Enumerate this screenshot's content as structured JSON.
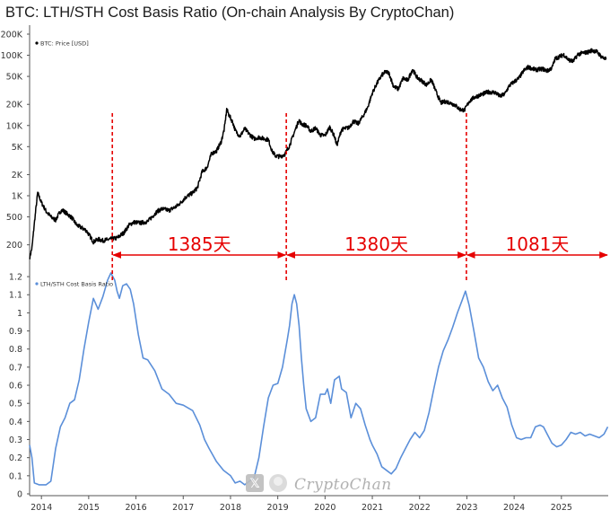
{
  "chart_data": [
    {
      "type": "line",
      "title": "BTC: LTH/STH Cost Basis Ratio (On-chain Analysis By CryptoChan)",
      "legend": "BTC: Price [USD]",
      "legend_position": "top-left",
      "yscale": "log",
      "ylim": [
        120,
        200000
      ],
      "y_ticks": [
        200,
        500,
        1000,
        2000,
        5000,
        10000,
        20000,
        50000,
        100000,
        200000
      ],
      "y_tick_labels": [
        "200",
        "500",
        "1K",
        "2K",
        "5K",
        "10K",
        "20K",
        "50K",
        "100K",
        "200K"
      ],
      "xlim": [
        2013.75,
        2025.99
      ],
      "series": [
        {
          "name": "BTC: Price [USD]",
          "color": "#000000",
          "x": [
            2013.75,
            2013.8,
            2013.85,
            2013.92,
            2014.0,
            2014.1,
            2014.2,
            2014.3,
            2014.4,
            2014.45,
            2014.55,
            2014.65,
            2014.75,
            2014.85,
            2014.95,
            2015.05,
            2015.1,
            2015.2,
            2015.3,
            2015.45,
            2015.6,
            2015.75,
            2015.85,
            2015.95,
            2016.1,
            2016.25,
            2016.45,
            2016.55,
            2016.7,
            2016.85,
            2016.95,
            2017.05,
            2017.2,
            2017.3,
            2017.4,
            2017.5,
            2017.6,
            2017.7,
            2017.8,
            2017.87,
            2017.92,
            2017.97,
            2018.05,
            2018.1,
            2018.2,
            2018.3,
            2018.4,
            2018.5,
            2018.6,
            2018.7,
            2018.8,
            2018.88,
            2018.95,
            2019.05,
            2019.15,
            2019.25,
            2019.35,
            2019.45,
            2019.5,
            2019.6,
            2019.7,
            2019.8,
            2019.9,
            2020.0,
            2020.1,
            2020.2,
            2020.25,
            2020.35,
            2020.5,
            2020.6,
            2020.7,
            2020.8,
            2020.9,
            2021.0,
            2021.1,
            2021.2,
            2021.28,
            2021.35,
            2021.45,
            2021.55,
            2021.65,
            2021.75,
            2021.85,
            2021.95,
            2022.05,
            2022.15,
            2022.25,
            2022.35,
            2022.45,
            2022.55,
            2022.65,
            2022.75,
            2022.85,
            2022.95,
            2023.05,
            2023.15,
            2023.3,
            2023.45,
            2023.6,
            2023.7,
            2023.8,
            2023.9,
            2024.0,
            2024.1,
            2024.2,
            2024.3,
            2024.45,
            2024.6,
            2024.7,
            2024.8,
            2024.87,
            2024.95,
            2025.05,
            2025.15,
            2025.25,
            2025.35,
            2025.45,
            2025.55,
            2025.65,
            2025.75,
            2025.85,
            2025.95
          ],
          "y": [
            130,
            180,
            400,
            1100,
            800,
            600,
            500,
            450,
            600,
            620,
            550,
            480,
            380,
            350,
            320,
            250,
            220,
            240,
            230,
            240,
            250,
            300,
            380,
            420,
            410,
            430,
            600,
            650,
            620,
            700,
            800,
            950,
            1100,
            1300,
            2200,
            2500,
            4000,
            4300,
            5800,
            9000,
            17000,
            14000,
            11000,
            8500,
            7000,
            9000,
            7500,
            6500,
            6800,
            6500,
            6300,
            4300,
            3700,
            3600,
            3900,
            5200,
            8000,
            12000,
            10500,
            10000,
            8300,
            9200,
            7300,
            7200,
            9500,
            7000,
            5200,
            8800,
            9300,
            11500,
            10600,
            13500,
            18000,
            29000,
            40000,
            52000,
            58000,
            56000,
            36000,
            33000,
            47000,
            44000,
            63000,
            48000,
            43000,
            38000,
            45000,
            30000,
            21000,
            22000,
            21000,
            19500,
            17000,
            16500,
            22000,
            25000,
            27500,
            30000,
            29500,
            26000,
            28000,
            37000,
            42000,
            47000,
            60000,
            68000,
            62000,
            64000,
            60000,
            66000,
            90000,
            95000,
            102000,
            86000,
            82000,
            103000,
            108000,
            110000,
            118000,
            112000,
            95000,
            87000
          ]
        }
      ]
    },
    {
      "type": "line",
      "legend": "LTH/STH Cost Basis Ratio",
      "legend_position": "top-left",
      "ylim": [
        0,
        1.25
      ],
      "y_ticks": [
        0,
        0.1,
        0.2,
        0.3,
        0.4,
        0.5,
        0.6,
        0.7,
        0.8,
        0.9,
        1.0,
        1.1,
        1.2
      ],
      "y_tick_labels": [
        "0",
        "0.1",
        "0.2",
        "0.3",
        "0.4",
        "0.5",
        "0.6",
        "0.7",
        "0.8",
        "0.9",
        "1",
        "1.1",
        "1.2"
      ],
      "xlim": [
        2013.75,
        2025.99
      ],
      "x_ticks": [
        2014,
        2015,
        2016,
        2017,
        2018,
        2019,
        2020,
        2021,
        2022,
        2023,
        2024,
        2025
      ],
      "x_tick_labels": [
        "2014",
        "2015",
        "2016",
        "2017",
        "2018",
        "2019",
        "2020",
        "2021",
        "2022",
        "2023",
        "2024",
        "2025"
      ],
      "series": [
        {
          "name": "LTH/STH Cost Basis Ratio",
          "color": "#5b8fd9",
          "x": [
            2013.75,
            2013.8,
            2013.85,
            2013.95,
            2014.1,
            2014.2,
            2014.3,
            2014.4,
            2014.5,
            2014.6,
            2014.7,
            2014.8,
            2014.9,
            2015.0,
            2015.1,
            2015.2,
            2015.3,
            2015.4,
            2015.47,
            2015.55,
            2015.6,
            2015.65,
            2015.72,
            2015.8,
            2015.88,
            2015.95,
            2016.05,
            2016.15,
            2016.25,
            2016.4,
            2016.55,
            2016.7,
            2016.85,
            2017.0,
            2017.2,
            2017.35,
            2017.45,
            2017.55,
            2017.7,
            2017.85,
            2018.0,
            2018.1,
            2018.2,
            2018.3,
            2018.4,
            2018.5,
            2018.6,
            2018.7,
            2018.8,
            2018.9,
            2019.0,
            2019.1,
            2019.2,
            2019.25,
            2019.3,
            2019.35,
            2019.4,
            2019.45,
            2019.5,
            2019.55,
            2019.6,
            2019.7,
            2019.8,
            2019.9,
            2020.0,
            2020.05,
            2020.12,
            2020.2,
            2020.3,
            2020.35,
            2020.45,
            2020.55,
            2020.65,
            2020.75,
            2020.85,
            2020.95,
            2021.0,
            2021.1,
            2021.2,
            2021.3,
            2021.4,
            2021.5,
            2021.6,
            2021.7,
            2021.8,
            2021.9,
            2022.0,
            2022.1,
            2022.2,
            2022.3,
            2022.4,
            2022.5,
            2022.6,
            2022.7,
            2022.8,
            2022.9,
            2022.97,
            2023.05,
            2023.15,
            2023.25,
            2023.35,
            2023.45,
            2023.55,
            2023.65,
            2023.75,
            2023.85,
            2023.95,
            2024.05,
            2024.15,
            2024.25,
            2024.35,
            2024.45,
            2024.55,
            2024.62,
            2024.7,
            2024.8,
            2024.9,
            2025.0,
            2025.1,
            2025.2,
            2025.3,
            2025.4,
            2025.5,
            2025.6,
            2025.7,
            2025.8,
            2025.9,
            2025.98
          ],
          "y": [
            0.27,
            0.2,
            0.06,
            0.05,
            0.05,
            0.07,
            0.25,
            0.37,
            0.42,
            0.5,
            0.52,
            0.63,
            0.8,
            0.95,
            1.08,
            1.02,
            1.09,
            1.18,
            1.22,
            1.18,
            1.12,
            1.08,
            1.15,
            1.16,
            1.13,
            1.05,
            0.88,
            0.75,
            0.74,
            0.68,
            0.58,
            0.55,
            0.5,
            0.49,
            0.46,
            0.38,
            0.3,
            0.25,
            0.18,
            0.13,
            0.1,
            0.06,
            0.07,
            0.05,
            0.07,
            0.09,
            0.2,
            0.37,
            0.53,
            0.6,
            0.61,
            0.7,
            0.85,
            0.93,
            1.05,
            1.1,
            1.05,
            0.93,
            0.75,
            0.6,
            0.47,
            0.4,
            0.42,
            0.55,
            0.55,
            0.58,
            0.5,
            0.63,
            0.65,
            0.58,
            0.56,
            0.42,
            0.5,
            0.47,
            0.38,
            0.3,
            0.27,
            0.22,
            0.15,
            0.13,
            0.11,
            0.14,
            0.2,
            0.25,
            0.3,
            0.34,
            0.31,
            0.35,
            0.45,
            0.58,
            0.7,
            0.79,
            0.85,
            0.92,
            1.0,
            1.07,
            1.12,
            1.04,
            0.9,
            0.75,
            0.7,
            0.62,
            0.57,
            0.6,
            0.53,
            0.48,
            0.38,
            0.31,
            0.3,
            0.31,
            0.31,
            0.37,
            0.38,
            0.37,
            0.33,
            0.28,
            0.26,
            0.27,
            0.3,
            0.34,
            0.33,
            0.34,
            0.32,
            0.33,
            0.32,
            0.31,
            0.33,
            0.37
          ]
        }
      ]
    }
  ],
  "annotations": {
    "cycle_lows": [
      2015.5,
      2019.18,
      2022.99
    ],
    "intervals": [
      {
        "label": "1385天",
        "from": 2015.5,
        "to": 2019.18
      },
      {
        "label": "1380天",
        "from": 2019.18,
        "to": 2022.99
      },
      {
        "label": "1081天",
        "from": 2022.99,
        "to": 2025.99
      }
    ],
    "color": "#e60000"
  },
  "watermark": {
    "text": "CryptoChan"
  }
}
